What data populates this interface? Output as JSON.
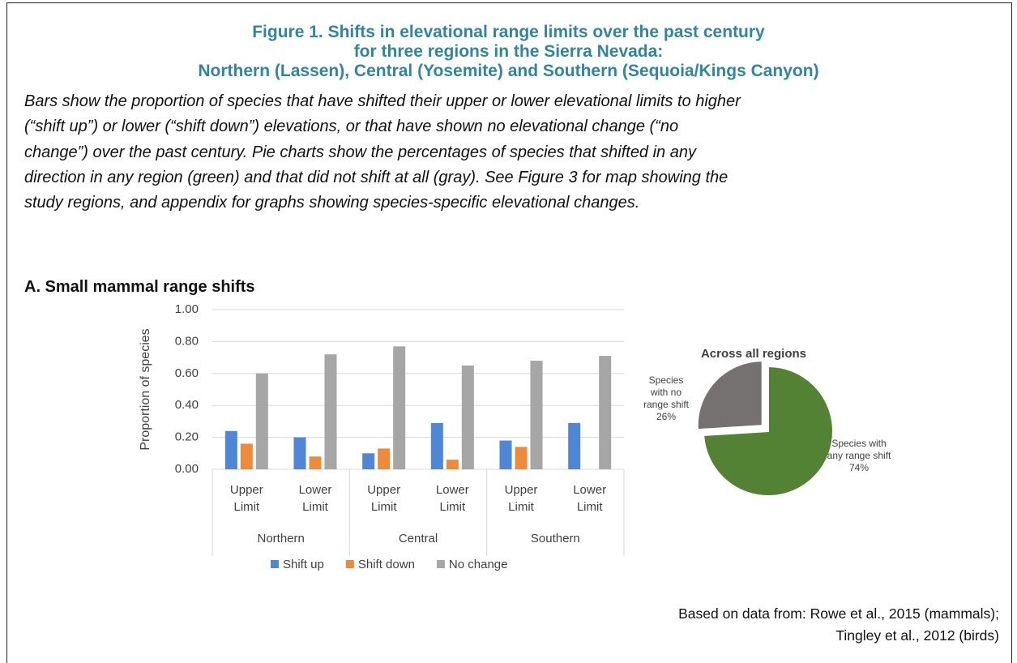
{
  "figure": {
    "title_lines": [
      "Figure 1. Shifts in elevational range limits over the past century",
      "for three regions in the Sierra Nevada:",
      "Northern (Lassen), Central (Yosemite) and Southern (Sequoia/Kings Canyon)"
    ],
    "caption_lines": [
      "Bars show the proportion of species that have shifted their upper or lower elevational limits to higher",
      "(“shift up”) or lower (“shift down”) elevations, or that have shown no elevational change (“no",
      "change”) over the past century. Pie charts show the percentages of species that shifted in any",
      "direction in any region (green) and that did not shift at all (gray). See Figure 3 for map showing the",
      "study regions, and appendix for graphs showing species-specific elevational changes."
    ],
    "section_title": "A.  Small mammal range shifts",
    "source_lines": [
      "Based on data from: Rowe et al., 2015 (mammals);",
      "Tingley et al., 2012 (birds)"
    ]
  },
  "chart_data": [
    {
      "type": "bar",
      "y_label": "Proportion of species",
      "categories": [
        "Upper Limit",
        "Lower Limit",
        "Upper Limit",
        "Lower Limit",
        "Upper Limit",
        "Lower Limit"
      ],
      "group_labels": [
        "Northern",
        "Central",
        "Southern"
      ],
      "series": [
        {
          "name": "Shift up",
          "color": "#4f86d6",
          "values": [
            0.24,
            0.2,
            0.1,
            0.29,
            0.18,
            0.29
          ]
        },
        {
          "name": "Shift down",
          "color": "#ee8a3c",
          "values": [
            0.16,
            0.08,
            0.13,
            0.06,
            0.14,
            0
          ]
        },
        {
          "name": "No change",
          "color": "#a6a6a6",
          "values": [
            0.6,
            0.72,
            0.77,
            0.65,
            0.68,
            0.71
          ]
        }
      ],
      "ylim": [
        0,
        1
      ],
      "yticks": [
        {
          "value": 0,
          "label": "0.00"
        },
        {
          "value": 0.2,
          "label": "0.20"
        },
        {
          "value": 0.4,
          "label": "0.40"
        },
        {
          "value": 0.6,
          "label": "0.60"
        },
        {
          "value": 0.8,
          "label": "0.80"
        },
        {
          "value": 1,
          "label": "1.00"
        }
      ],
      "grid": true,
      "legend": "bottom"
    },
    {
      "type": "pie",
      "title": "Across all regions",
      "categories": [
        "Species with any range shift",
        "Species with no range shift"
      ],
      "values": [
        74,
        26
      ],
      "value_labels": [
        "74%",
        "26%"
      ],
      "colors": [
        "#548235",
        "#767171"
      ],
      "explode": [
        false,
        true
      ]
    }
  ]
}
